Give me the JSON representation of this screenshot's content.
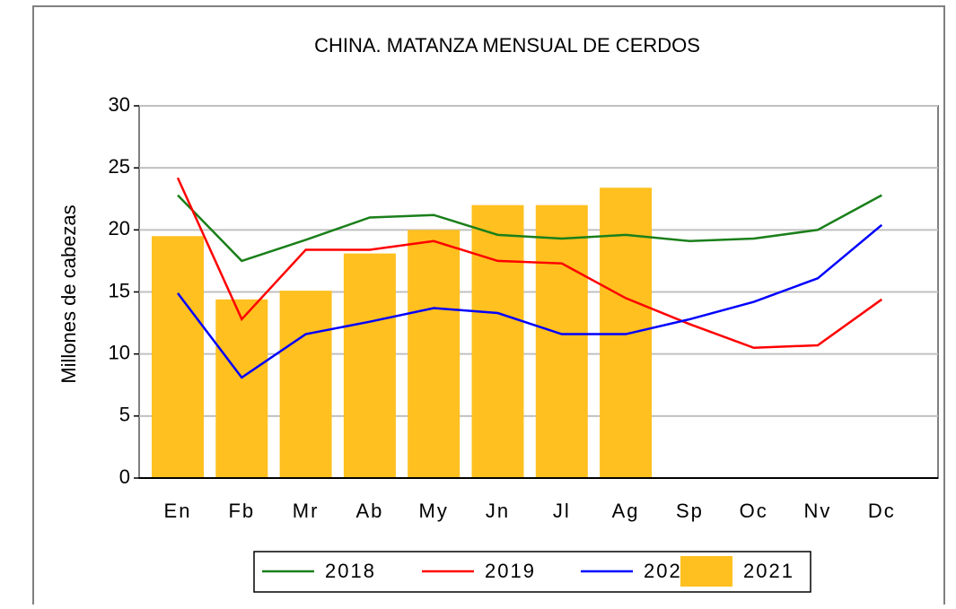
{
  "chart_data": {
    "type": "combo",
    "title": "CHINA. MATANZA MENSUAL DE CERDOS",
    "y_label": "Millones de cabezas",
    "categories": [
      "En",
      "Fb",
      "Mr",
      "Ab",
      "My",
      "Jn",
      "Jl",
      "Ag",
      "Sp",
      "Oc",
      "Nv",
      "Dc"
    ],
    "series": [
      {
        "name": "2018",
        "type": "line",
        "color": "#1a7f1a",
        "values": [
          22.8,
          17.5,
          19.2,
          21.0,
          21.2,
          19.6,
          19.3,
          19.6,
          19.1,
          19.3,
          20.0,
          22.8
        ]
      },
      {
        "name": "2019",
        "type": "line",
        "color": "#ff0000",
        "values": [
          24.2,
          12.8,
          18.4,
          18.4,
          19.1,
          17.5,
          17.3,
          14.5,
          12.4,
          10.5,
          10.7,
          14.4
        ]
      },
      {
        "name": "2020",
        "type": "line",
        "color": "#0000ff",
        "values": [
          14.9,
          8.1,
          11.6,
          12.6,
          13.7,
          13.3,
          11.6,
          11.6,
          12.8,
          14.2,
          16.1,
          20.4
        ]
      },
      {
        "name": "2021",
        "type": "bar",
        "color": "#ffc020",
        "values": [
          19.5,
          14.4,
          15.1,
          18.1,
          20.0,
          22.0,
          22.0,
          23.4,
          null,
          null,
          null,
          null
        ]
      }
    ],
    "ylim": [
      0,
      30
    ],
    "yticks": [
      0,
      5,
      10,
      15,
      20,
      25,
      30
    ],
    "grid": true,
    "legend": "bottom"
  }
}
